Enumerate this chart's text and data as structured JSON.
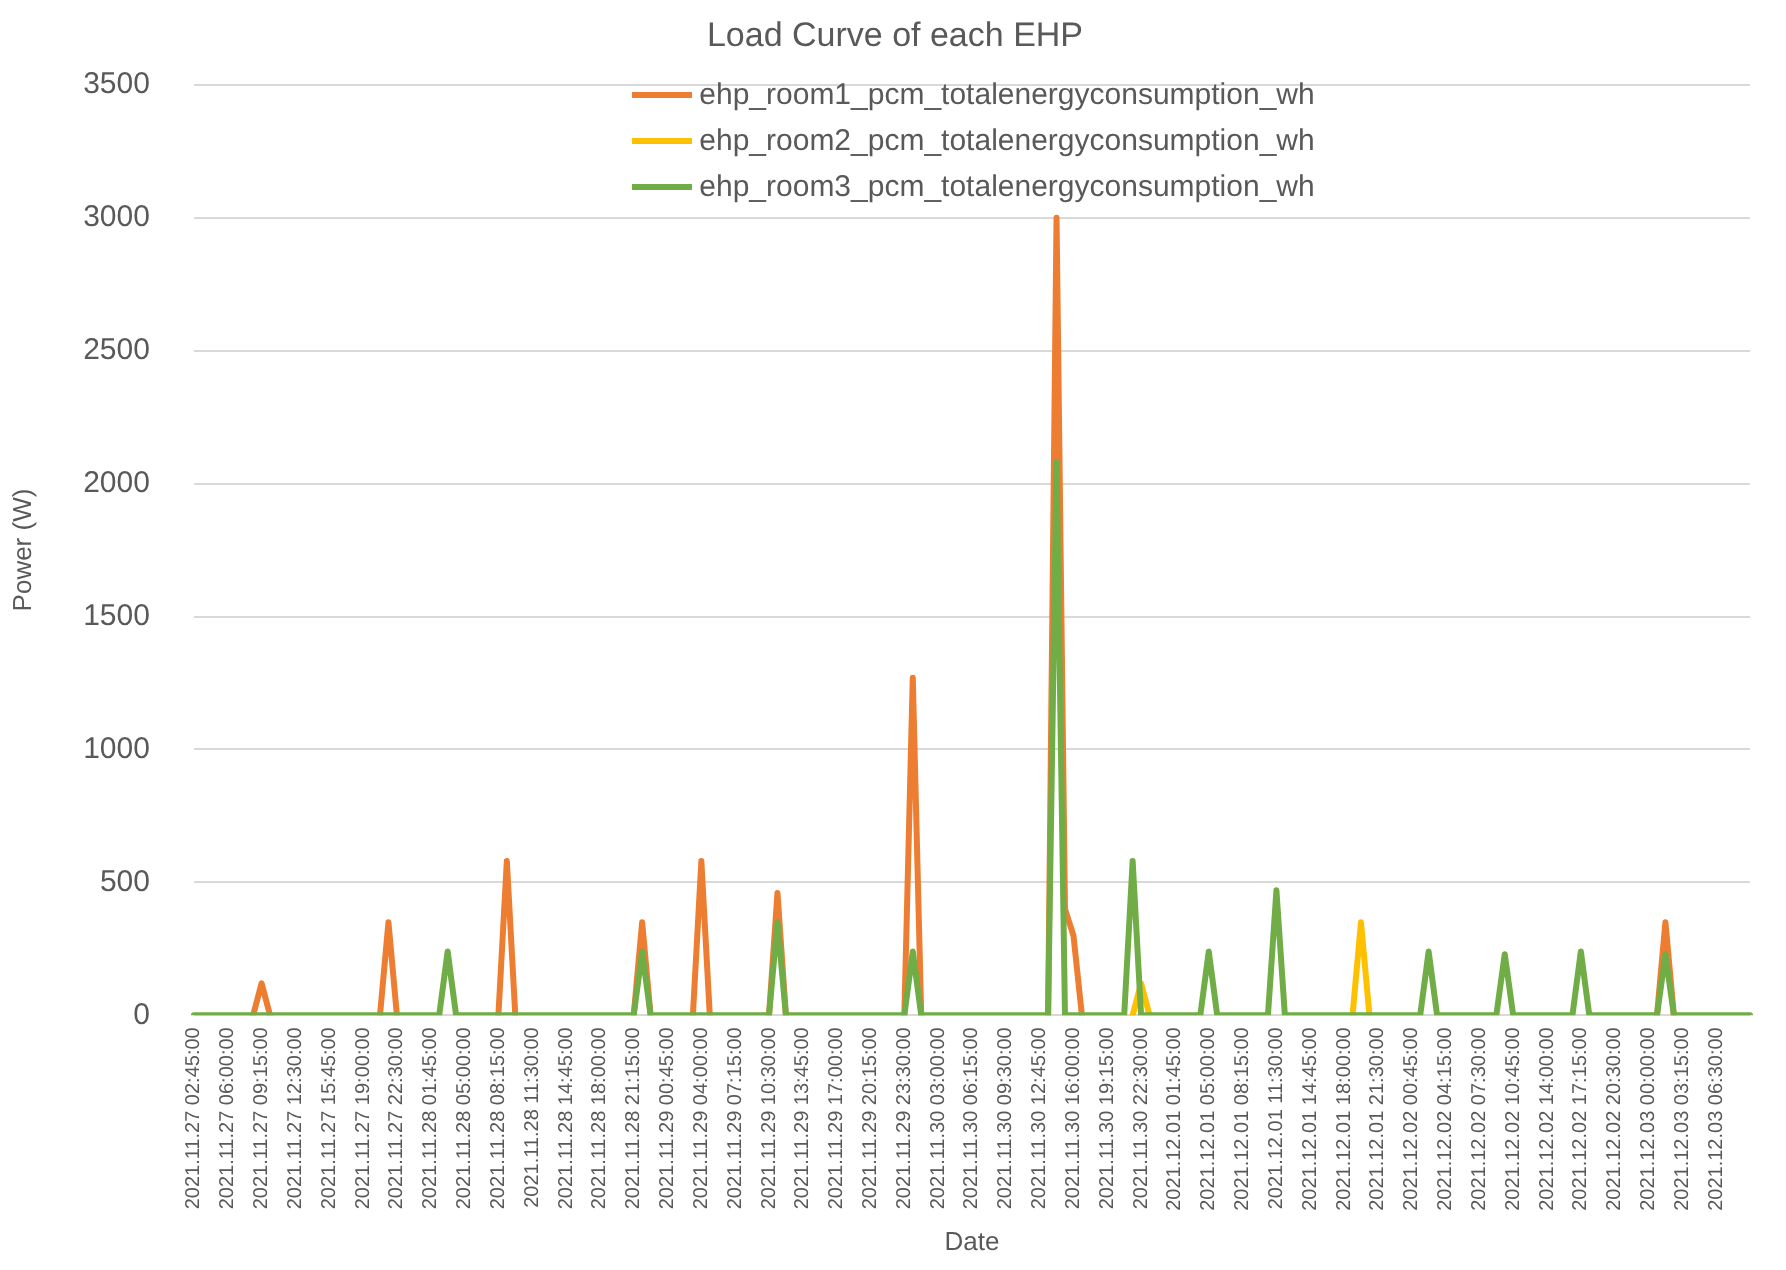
{
  "chart_data": {
    "type": "line",
    "title": "Load Curve of each EHP",
    "xlabel": "Date",
    "ylabel": "Power (W)",
    "categories": [
      "2021.11.27 02:45:00",
      null,
      null,
      null,
      "2021.11.27 06:00:00",
      null,
      null,
      null,
      "2021.11.27 09:15:00",
      null,
      null,
      null,
      "2021.11.27 12:30:00",
      null,
      null,
      null,
      "2021.11.27 15:45:00",
      null,
      null,
      null,
      "2021.11.27 19:00:00",
      null,
      null,
      null,
      "2021.11.27 22:30:00",
      null,
      null,
      null,
      "2021.11.28 01:45:00",
      null,
      null,
      null,
      "2021.11.28 05:00:00",
      null,
      null,
      null,
      "2021.11.28 08:15:00",
      null,
      null,
      null,
      "2021.11.28 11:30:00",
      null,
      null,
      null,
      "2021.11.28 14:45:00",
      null,
      null,
      null,
      "2021.11.28 18:00:00",
      null,
      null,
      null,
      "2021.11.28 21:15:00",
      null,
      null,
      null,
      "2021.11.29 00:45:00",
      null,
      null,
      null,
      "2021.11.29 04:00:00",
      null,
      null,
      null,
      "2021.11.29 07:15:00",
      null,
      null,
      null,
      "2021.11.29 10:30:00",
      null,
      null,
      null,
      "2021.11.29 13:45:00",
      null,
      null,
      null,
      "2021.11.29 17:00:00",
      null,
      null,
      null,
      "2021.11.29 20:15:00",
      null,
      null,
      null,
      "2021.11.29 23:30:00",
      null,
      null,
      null,
      "2021.11.30 03:00:00",
      null,
      null,
      null,
      "2021.11.30 06:15:00",
      null,
      null,
      null,
      "2021.11.30 09:30:00",
      null,
      null,
      null,
      "2021.11.30 12:45:00",
      null,
      null,
      null,
      "2021.11.30 16:00:00",
      null,
      null,
      null,
      "2021.11.30 19:15:00",
      null,
      null,
      null,
      "2021.11.30 22:30:00",
      null,
      null,
      null,
      "2021.12.01 01:45:00",
      null,
      null,
      null,
      "2021.12.01 05:00:00",
      null,
      null,
      null,
      "2021.12.01 08:15:00",
      null,
      null,
      null,
      "2021.12.01 11:30:00",
      null,
      null,
      null,
      "2021.12.01 14:45:00",
      null,
      null,
      null,
      "2021.12.01 18:00:00",
      null,
      null,
      null,
      "2021.12.01 21:30:00",
      null,
      null,
      null,
      "2021.12.02 00:45:00",
      null,
      null,
      null,
      "2021.12.02 04:15:00",
      null,
      null,
      null,
      "2021.12.02 07:30:00",
      null,
      null,
      null,
      "2021.12.02 10:45:00",
      null,
      null,
      null,
      "2021.12.02 14:00:00",
      null,
      null,
      null,
      "2021.12.02 17:15:00",
      null,
      null,
      null,
      "2021.12.02 20:30:00",
      null,
      null,
      null,
      "2021.12.03 00:00:00",
      null,
      null,
      null,
      "2021.12.03 03:15:00",
      null,
      null,
      null,
      "2021.12.03 06:30:00",
      null,
      null,
      null,
      null
    ],
    "series": [
      {
        "name": "ehp_room1_pcm_totalenergyconsumption_wh",
        "color": "#ed7d31",
        "values": [
          null,
          null,
          null,
          null,
          null,
          null,
          null,
          0,
          120,
          0,
          null,
          null,
          null,
          null,
          null,
          null,
          null,
          null,
          null,
          null,
          null,
          null,
          0,
          350,
          0,
          null,
          null,
          null,
          null,
          null,
          null,
          null,
          null,
          null,
          null,
          null,
          0,
          580,
          0,
          null,
          null,
          null,
          null,
          null,
          null,
          null,
          null,
          null,
          null,
          null,
          null,
          null,
          0,
          350,
          0,
          null,
          null,
          null,
          null,
          0,
          580,
          0,
          null,
          null,
          null,
          null,
          null,
          null,
          0,
          460,
          0,
          null,
          null,
          null,
          null,
          null,
          null,
          null,
          null,
          null,
          null,
          null,
          null,
          null,
          0,
          1270,
          0,
          null,
          null,
          null,
          null,
          null,
          null,
          null,
          null,
          null,
          null,
          null,
          null,
          null,
          null,
          0,
          3000,
          400,
          300,
          0,
          null,
          null,
          null,
          null,
          null,
          null,
          null,
          null,
          null,
          null,
          null,
          null,
          null,
          null,
          null,
          null,
          null,
          null,
          null,
          null,
          null,
          null,
          null,
          null,
          null,
          null,
          null,
          null,
          null,
          null,
          null,
          null,
          null,
          null,
          null,
          null,
          null,
          null,
          null,
          null,
          null,
          null,
          null,
          null,
          null,
          null,
          null,
          null,
          null,
          null,
          null,
          null,
          null,
          null,
          null,
          null,
          null,
          null,
          null,
          null,
          null,
          null,
          null,
          null,
          null,
          null,
          null,
          0,
          350,
          0,
          null,
          null,
          null,
          null,
          null,
          null,
          null,
          null,
          null
        ]
      },
      {
        "name": "ehp_room2_pcm_totalenergyconsumption_wh",
        "color": "#ffc000",
        "values": [
          null,
          null,
          null,
          null,
          null,
          null,
          null,
          null,
          null,
          null,
          null,
          null,
          null,
          null,
          null,
          null,
          null,
          null,
          null,
          null,
          null,
          null,
          null,
          null,
          null,
          null,
          null,
          null,
          null,
          null,
          null,
          null,
          null,
          null,
          null,
          null,
          null,
          null,
          null,
          null,
          null,
          null,
          null,
          null,
          null,
          null,
          null,
          null,
          null,
          null,
          null,
          null,
          null,
          null,
          null,
          null,
          null,
          null,
          null,
          null,
          null,
          null,
          null,
          null,
          null,
          null,
          null,
          null,
          null,
          null,
          null,
          null,
          null,
          null,
          null,
          null,
          null,
          null,
          null,
          null,
          null,
          null,
          null,
          null,
          null,
          null,
          null,
          null,
          null,
          null,
          null,
          null,
          null,
          null,
          null,
          null,
          null,
          null,
          null,
          null,
          null,
          null,
          null,
          null,
          null,
          null,
          null,
          null,
          null,
          null,
          null,
          0,
          120,
          0,
          null,
          null,
          null,
          null,
          null,
          null,
          null,
          null,
          null,
          null,
          null,
          null,
          null,
          null,
          null,
          null,
          null,
          null,
          null,
          null,
          null,
          null,
          null,
          0,
          350,
          0,
          null,
          null,
          null,
          null,
          null,
          null,
          null,
          null,
          null,
          null,
          null,
          null,
          null,
          null,
          null,
          null,
          null,
          null,
          null,
          null,
          null,
          null,
          null,
          null,
          null,
          null,
          null,
          null,
          null,
          null,
          null,
          null,
          null,
          null,
          null,
          null,
          null,
          null,
          null,
          null,
          null,
          null,
          null,
          null,
          null
        ]
      },
      {
        "name": "ehp_room3_pcm_totalenergyconsumption_wh",
        "color": "#70ad47",
        "values": [
          0,
          0,
          0,
          0,
          0,
          0,
          0,
          0,
          0,
          0,
          0,
          0,
          0,
          0,
          0,
          0,
          0,
          0,
          0,
          0,
          0,
          0,
          0,
          0,
          0,
          0,
          0,
          0,
          0,
          0,
          240,
          0,
          0,
          0,
          0,
          0,
          0,
          0,
          0,
          0,
          0,
          0,
          0,
          0,
          0,
          0,
          0,
          0,
          0,
          0,
          0,
          0,
          0,
          240,
          0,
          0,
          0,
          0,
          0,
          0,
          0,
          0,
          0,
          0,
          0,
          0,
          0,
          0,
          0,
          350,
          0,
          0,
          0,
          0,
          0,
          0,
          0,
          0,
          0,
          0,
          0,
          0,
          0,
          0,
          0,
          240,
          0,
          0,
          0,
          0,
          0,
          0,
          0,
          0,
          0,
          0,
          0,
          0,
          0,
          0,
          0,
          0,
          2080,
          0,
          0,
          0,
          0,
          0,
          0,
          0,
          0,
          580,
          0,
          0,
          0,
          0,
          0,
          0,
          0,
          0,
          240,
          0,
          0,
          0,
          0,
          0,
          0,
          0,
          470,
          0,
          0,
          0,
          0,
          0,
          0,
          0,
          0,
          0,
          0,
          0,
          0,
          0,
          0,
          0,
          0,
          0,
          240,
          0,
          0,
          0,
          0,
          0,
          0,
          0,
          0,
          230,
          0,
          0,
          0,
          0,
          0,
          0,
          0,
          0,
          240,
          0,
          0,
          0,
          0,
          0,
          0,
          0,
          0,
          0,
          230,
          0,
          0,
          0,
          0,
          0,
          0,
          0,
          0,
          0,
          0
        ]
      }
    ],
    "ylim": [
      0,
      3500
    ],
    "yticks": [
      0,
      500,
      1000,
      1500,
      2000,
      2500,
      3000,
      3500
    ],
    "grid": "y",
    "legend": "top",
    "marker": "none",
    "line_style": "solid"
  }
}
